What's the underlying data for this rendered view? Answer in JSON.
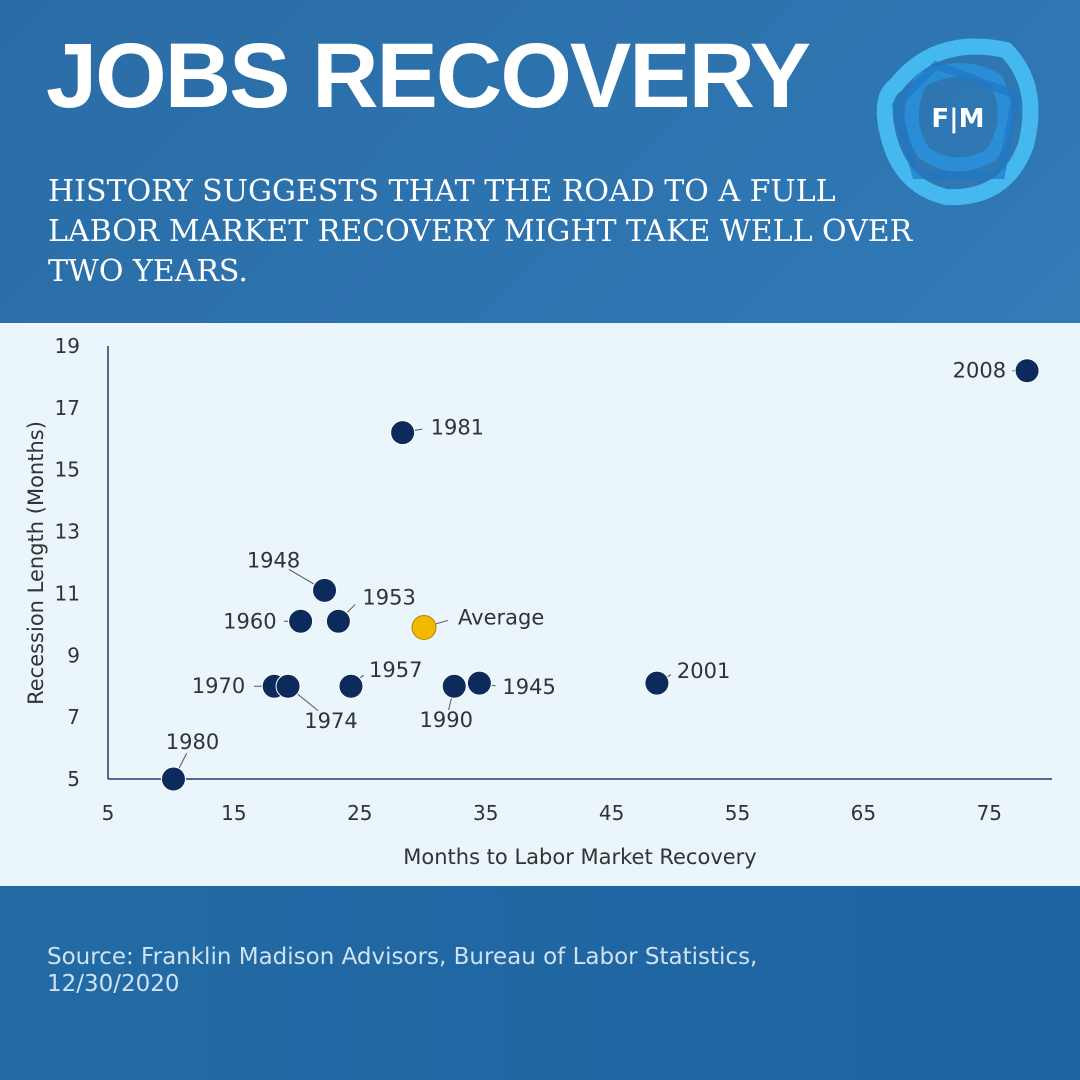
{
  "header": {
    "title": "JOBS RECOVERY",
    "subtitle": "HISTORY SUGGESTS THAT THE ROAD TO A FULL LABOR MARKET RECOVERY MIGHT TAKE WELL OVER TWO YEARS.",
    "logo_text": "F|M"
  },
  "footer": {
    "source": "Source: Franklin Madison Advisors, Bureau of Labor Statistics, 12/30/2020"
  },
  "colors": {
    "point": "#0d2a5c",
    "average": "#f5b800",
    "axis": "#1f3d6e",
    "text": "#333333"
  },
  "chart_data": {
    "type": "scatter",
    "xlabel": "Months to Labor Market Recovery",
    "ylabel": "Recession Length (Months)",
    "xlim": [
      5,
      80
    ],
    "ylim": [
      5,
      19.5
    ],
    "xticks": [
      5,
      15,
      25,
      35,
      45,
      55,
      65,
      75
    ],
    "yticks": [
      5,
      7,
      9,
      11,
      13,
      15,
      17,
      19
    ],
    "grid": false,
    "points": [
      {
        "label": "1980",
        "x": 10.2,
        "y": 5.0
      },
      {
        "label": "1970",
        "x": 18.2,
        "y": 8.0
      },
      {
        "label": "1974",
        "x": 19.3,
        "y": 8.0
      },
      {
        "label": "1960",
        "x": 20.3,
        "y": 10.1
      },
      {
        "label": "1948",
        "x": 22.2,
        "y": 11.1
      },
      {
        "label": "1953",
        "x": 23.3,
        "y": 10.1
      },
      {
        "label": "1957",
        "x": 24.3,
        "y": 8.0
      },
      {
        "label": "1981",
        "x": 28.4,
        "y": 16.2
      },
      {
        "label": "Average",
        "x": 30.1,
        "y": 9.9,
        "highlight": true
      },
      {
        "label": "1990",
        "x": 32.5,
        "y": 8.0
      },
      {
        "label": "1945",
        "x": 34.5,
        "y": 8.1
      },
      {
        "label": "2001",
        "x": 48.6,
        "y": 8.1
      },
      {
        "label": "2008",
        "x": 78.0,
        "y": 18.2
      }
    ]
  }
}
